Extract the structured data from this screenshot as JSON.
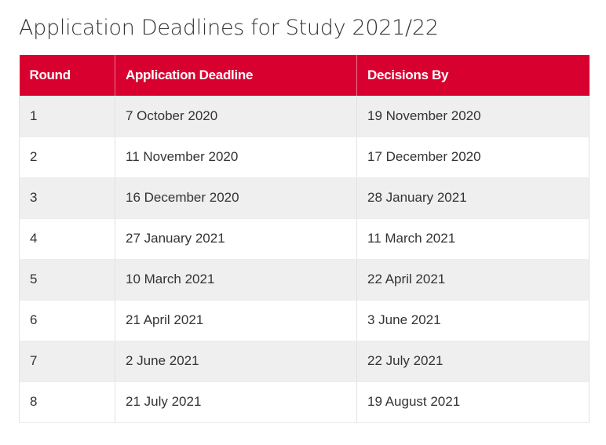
{
  "page": {
    "title": "Application Deadlines for Study 2021/22"
  },
  "table": {
    "headers": [
      "Round",
      "Application Deadline",
      "Decisions By"
    ],
    "rows": [
      [
        "1",
        "7 October 2020",
        "19 November 2020"
      ],
      [
        "2",
        "11 November 2020",
        "17 December 2020"
      ],
      [
        "3",
        "16 December 2020",
        "28 January 2021"
      ],
      [
        "4",
        "27 January 2021",
        "11 March 2021"
      ],
      [
        "5",
        "10 March 2021",
        "22 April 2021"
      ],
      [
        "6",
        "21 April 2021",
        "3 June 2021"
      ],
      [
        "7",
        "2 June 2021",
        "22 July 2021"
      ],
      [
        "8",
        "21 July 2021",
        "19 August 2021"
      ]
    ],
    "header_color": "#d8002f",
    "stripe_color": "#efefef"
  }
}
